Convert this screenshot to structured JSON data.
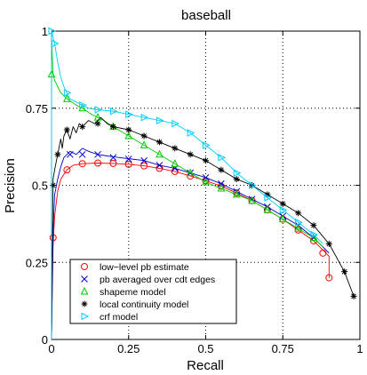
{
  "chart_data": {
    "type": "line",
    "title": "baseball",
    "xlabel": "Recall",
    "ylabel": "Precision",
    "xlim": [
      0,
      1
    ],
    "ylim": [
      0,
      1
    ],
    "grid": true,
    "legend_position": "bottom-left",
    "x_ticks": [
      "0",
      "0.25",
      "0.5",
      "0.75",
      "1"
    ],
    "y_ticks": [
      "0",
      "0.25",
      "0.5",
      "0.75",
      "1"
    ],
    "series": [
      {
        "name": "low−level pb estimate",
        "color": "#ff0000",
        "marker": "circle",
        "x": [
          0.0,
          0.005,
          0.01,
          0.02,
          0.03,
          0.05,
          0.07,
          0.1,
          0.15,
          0.2,
          0.25,
          0.3,
          0.35,
          0.4,
          0.45,
          0.5,
          0.55,
          0.6,
          0.65,
          0.7,
          0.75,
          0.8,
          0.85,
          0.88,
          0.9,
          0.9
        ],
        "y": [
          0.0,
          0.3,
          0.4,
          0.48,
          0.52,
          0.55,
          0.565,
          0.57,
          0.572,
          0.571,
          0.568,
          0.563,
          0.555,
          0.545,
          0.53,
          0.515,
          0.497,
          0.475,
          0.45,
          0.42,
          0.39,
          0.355,
          0.32,
          0.29,
          0.27,
          0.2
        ],
        "marker_x": [
          0.005,
          0.05,
          0.1,
          0.15,
          0.2,
          0.25,
          0.3,
          0.35,
          0.4,
          0.45,
          0.5,
          0.55,
          0.6,
          0.65,
          0.7,
          0.75,
          0.8,
          0.85,
          0.88,
          0.9
        ],
        "marker_y": [
          0.33,
          0.55,
          0.57,
          0.572,
          0.571,
          0.568,
          0.563,
          0.555,
          0.545,
          0.53,
          0.515,
          0.497,
          0.475,
          0.45,
          0.42,
          0.39,
          0.355,
          0.32,
          0.28,
          0.2
        ]
      },
      {
        "name": "pb averaged over cdt edges",
        "color": "#0000cc",
        "marker": "x",
        "x": [
          0.0,
          0.005,
          0.01,
          0.02,
          0.03,
          0.04,
          0.06,
          0.08,
          0.1,
          0.12,
          0.15,
          0.18,
          0.22,
          0.26,
          0.3,
          0.35,
          0.4,
          0.45,
          0.5,
          0.55,
          0.6,
          0.65,
          0.7,
          0.75,
          0.8,
          0.85,
          0.9
        ],
        "y": [
          0.0,
          0.35,
          0.47,
          0.52,
          0.56,
          0.59,
          0.61,
          0.6,
          0.62,
          0.61,
          0.6,
          0.595,
          0.59,
          0.585,
          0.58,
          0.565,
          0.555,
          0.54,
          0.525,
          0.505,
          0.48,
          0.455,
          0.43,
          0.4,
          0.37,
          0.33,
          0.28
        ],
        "marker_x": [
          0.06,
          0.1,
          0.15,
          0.2,
          0.25,
          0.3,
          0.35,
          0.4,
          0.45,
          0.5,
          0.55,
          0.6,
          0.65,
          0.7,
          0.75,
          0.8,
          0.85
        ],
        "marker_y": [
          0.6,
          0.6,
          0.6,
          0.59,
          0.585,
          0.58,
          0.565,
          0.555,
          0.54,
          0.525,
          0.505,
          0.48,
          0.455,
          0.43,
          0.4,
          0.37,
          0.33
        ]
      },
      {
        "name": "shapeme model",
        "color": "#00cc00",
        "marker": "triangle",
        "x": [
          0.0,
          0.0,
          0.005,
          0.01,
          0.02,
          0.03,
          0.05,
          0.08,
          0.1,
          0.13,
          0.17,
          0.2,
          0.25,
          0.3,
          0.35,
          0.4,
          0.45,
          0.5,
          0.55,
          0.6,
          0.65,
          0.7,
          0.75,
          0.8,
          0.85,
          0.88
        ],
        "y": [
          0.0,
          0.98,
          0.86,
          0.84,
          0.82,
          0.8,
          0.78,
          0.76,
          0.75,
          0.73,
          0.71,
          0.69,
          0.66,
          0.63,
          0.6,
          0.57,
          0.54,
          0.51,
          0.49,
          0.47,
          0.45,
          0.42,
          0.39,
          0.36,
          0.33,
          0.3
        ],
        "marker_x": [
          0.0,
          0.05,
          0.1,
          0.15,
          0.2,
          0.25,
          0.3,
          0.35,
          0.4,
          0.45,
          0.5,
          0.55,
          0.6,
          0.65,
          0.7,
          0.75,
          0.8,
          0.85
        ],
        "marker_y": [
          0.86,
          0.78,
          0.75,
          0.72,
          0.69,
          0.66,
          0.63,
          0.6,
          0.57,
          0.54,
          0.51,
          0.49,
          0.47,
          0.45,
          0.42,
          0.39,
          0.36,
          0.33
        ]
      },
      {
        "name": "local continuity model",
        "color": "#000000",
        "marker": "star",
        "x": [
          0.0,
          0.005,
          0.01,
          0.02,
          0.03,
          0.035,
          0.04,
          0.05,
          0.06,
          0.07,
          0.08,
          0.09,
          0.1,
          0.12,
          0.14,
          0.16,
          0.18,
          0.2,
          0.25,
          0.3,
          0.35,
          0.4,
          0.45,
          0.5,
          0.55,
          0.6,
          0.65,
          0.7,
          0.75,
          0.8,
          0.85,
          0.9,
          0.95,
          0.98
        ],
        "y": [
          0.0,
          0.52,
          0.55,
          0.6,
          0.65,
          0.62,
          0.66,
          0.68,
          0.65,
          0.69,
          0.67,
          0.7,
          0.69,
          0.71,
          0.7,
          0.72,
          0.7,
          0.69,
          0.68,
          0.66,
          0.64,
          0.62,
          0.6,
          0.58,
          0.55,
          0.52,
          0.5,
          0.47,
          0.44,
          0.41,
          0.37,
          0.31,
          0.22,
          0.14
        ],
        "marker_x": [
          0.005,
          0.02,
          0.05,
          0.1,
          0.15,
          0.2,
          0.25,
          0.3,
          0.35,
          0.4,
          0.45,
          0.5,
          0.55,
          0.6,
          0.65,
          0.7,
          0.75,
          0.8,
          0.85,
          0.9,
          0.95,
          0.98
        ],
        "marker_y": [
          0.5,
          0.6,
          0.68,
          0.69,
          0.7,
          0.69,
          0.68,
          0.66,
          0.64,
          0.62,
          0.6,
          0.58,
          0.55,
          0.52,
          0.5,
          0.47,
          0.44,
          0.41,
          0.37,
          0.31,
          0.22,
          0.14
        ]
      },
      {
        "name": "crf model",
        "color": "#00ccff",
        "marker": "triangle-right",
        "x": [
          0.0,
          0.0,
          0.005,
          0.01,
          0.02,
          0.03,
          0.04,
          0.05,
          0.06,
          0.08,
          0.1,
          0.12,
          0.15,
          0.2,
          0.25,
          0.3,
          0.35,
          0.4,
          0.45,
          0.5,
          0.55,
          0.6,
          0.65,
          0.7,
          0.75,
          0.8,
          0.85,
          0.88
        ],
        "y": [
          0.0,
          1.0,
          0.98,
          0.96,
          0.9,
          0.85,
          0.82,
          0.8,
          0.78,
          0.77,
          0.76,
          0.75,
          0.745,
          0.74,
          0.73,
          0.72,
          0.71,
          0.7,
          0.67,
          0.63,
          0.59,
          0.54,
          0.5,
          0.46,
          0.42,
          0.38,
          0.34,
          0.31
        ],
        "marker_x": [
          0.0,
          0.01,
          0.05,
          0.1,
          0.15,
          0.2,
          0.25,
          0.3,
          0.35,
          0.4,
          0.45,
          0.5,
          0.55,
          0.6,
          0.65,
          0.7,
          0.75,
          0.8,
          0.85
        ],
        "marker_y": [
          1.0,
          0.96,
          0.8,
          0.76,
          0.745,
          0.74,
          0.73,
          0.72,
          0.71,
          0.7,
          0.67,
          0.63,
          0.59,
          0.54,
          0.5,
          0.46,
          0.42,
          0.38,
          0.34
        ]
      }
    ]
  }
}
